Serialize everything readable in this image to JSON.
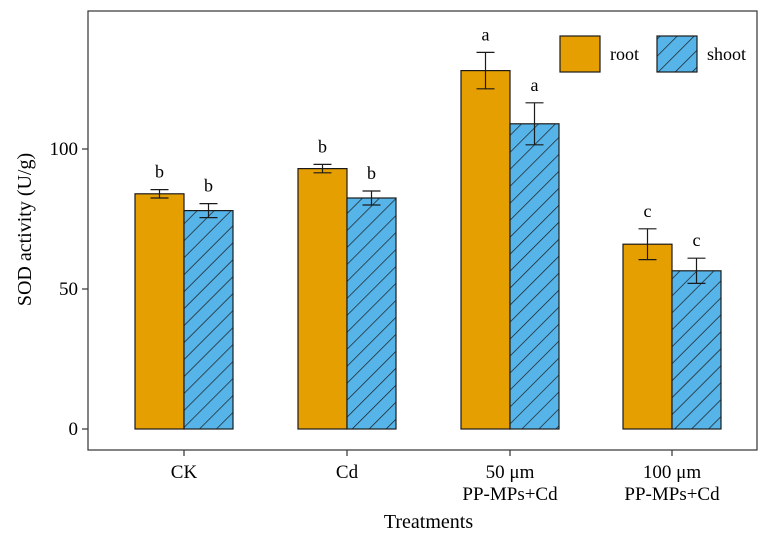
{
  "chart_data": {
    "type": "bar",
    "title": "",
    "xlabel": "Treatments",
    "ylabel": "SOD activity (U/g)",
    "ylim": [
      0,
      150
    ],
    "yticks": [
      0,
      50,
      100
    ],
    "grid": false,
    "legend_position": "top-right",
    "categories": [
      [
        "CK"
      ],
      [
        "Cd"
      ],
      [
        "50 μm",
        "PP-MPs+Cd"
      ],
      [
        "100 μm",
        "PP-MPs+Cd"
      ]
    ],
    "series": [
      {
        "name": "root",
        "color": "#E69F00",
        "pattern": "solid",
        "values": [
          84,
          93,
          128,
          66
        ],
        "errors": [
          1.5,
          1.5,
          6.5,
          5.5
        ],
        "labels": [
          "b",
          "b",
          "a",
          "c"
        ]
      },
      {
        "name": "shoot",
        "color": "#56B4E9",
        "pattern": "hatched",
        "values": [
          78,
          82.5,
          109,
          56.5
        ],
        "errors": [
          2.5,
          2.5,
          7.5,
          4.5
        ],
        "labels": [
          "b",
          "b",
          "a",
          "c"
        ]
      }
    ]
  }
}
